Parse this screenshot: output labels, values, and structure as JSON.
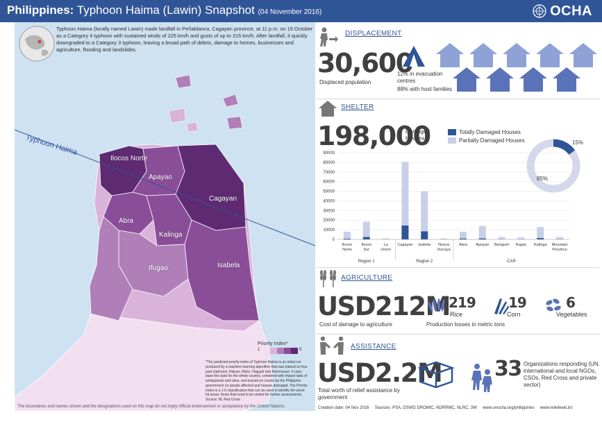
{
  "header": {
    "title_bold": "Philippines:",
    "title_rest": "Typhoon Haima (Lawin) Snapshot",
    "date": "(04 November 2016)",
    "logo_text": "OCHA"
  },
  "intro": "Typhoon Haima (locally named Lawin) made landfall in Peñablanca, Cagayan province, at 11 p.m. on 19 October as a Category 4 typhoon with sustained winds of 225 km/h and gusts of up to 315 km/h. After landfall, it quickly downgraded to a Category 3 typhoon, leaving a broad path of debris, damage to homes, businesses and agriculture, flooding and landslides.",
  "map": {
    "track_label": "Typhoon Haima",
    "provinces": [
      "Ilocos Norte",
      "Apayao",
      "Cagayan",
      "Abra",
      "Kalinga",
      "Ifugao",
      "Isabela"
    ],
    "legend_title": "Priority Index*",
    "legend_min": "1",
    "legend_max": "5",
    "legend_colors": [
      "#f2dff0",
      "#d9b3d9",
      "#b07fb8",
      "#8a4e98",
      "#5e2a72"
    ],
    "footnote": "*The predicted priority index of Typhoon Haima is an initial run produced by a machine learning algorithm that was trained on four past typhoons: Haiyan, Melor, Hagupit and Rammasun. It uses base line data for the whole country, combined with impact data of windspeeds and rains, and trained on counts by the Philippine government on people affected and houses damaged. The Priority Index is a 1-5 classification that can be used to identify the worst hit areas: those that need to be visited for further assessments.",
    "footnote_source": "Source: NL Red Cross",
    "disclaimer": "The boundaries and names shown and the designations used on this map do not imply official endorsement or acceptance by the United Nations."
  },
  "displacement": {
    "heading": "DISPLACEMENT",
    "value": "30,600",
    "label": "Displaced population",
    "evac_text": "12% in evacuation centres",
    "host_text": "88% with host families",
    "icons": {
      "person": "person-arrow-icon",
      "tent": "tent-icon",
      "house": "house-icon"
    }
  },
  "shelter": {
    "heading": "SHELTER",
    "value": "198,000",
    "label": "Damaged Houses",
    "legend_total": "Totally Damaged Houses",
    "legend_partial": "Partially Damaged Houses",
    "colors": {
      "total": "#2f5597",
      "partial": "#c9cfe8"
    },
    "donut_pct_total": "15%",
    "donut_pct_partial": "85%",
    "icon": "house-icon"
  },
  "chart_data": {
    "type": "bar",
    "stacked": true,
    "categories": [
      "Ilocos Norte",
      "Ilocos Sur",
      "La Union",
      "Cagayan",
      "Isabela",
      "Nueva Vizcaya",
      "Abra",
      "Apayao",
      "Benguet",
      "Ifugao",
      "Kalinga",
      "Mountain Province"
    ],
    "groups": [
      {
        "label": "Region 1",
        "categories": [
          "Ilocos Norte",
          "Ilocos Sur",
          "La Union"
        ]
      },
      {
        "label": "Region 2",
        "categories": [
          "Cagayan",
          "Isabela",
          "Nueva Vizcaya"
        ]
      },
      {
        "label": "CAR",
        "categories": [
          "Abra",
          "Apayao",
          "Benguet",
          "Ifugao",
          "Kalinga",
          "Mountain Province"
        ]
      }
    ],
    "series": [
      {
        "name": "Totally Damaged Houses",
        "values": [
          800,
          2500,
          100,
          14500,
          8500,
          100,
          1000,
          1200,
          150,
          150,
          1500,
          200
        ]
      },
      {
        "name": "Partially Damaged Houses",
        "values": [
          7200,
          16000,
          900,
          66000,
          41500,
          900,
          7000,
          12800,
          2350,
          1850,
          11500,
          2300
        ]
      }
    ],
    "yticks": [
      0,
      10000,
      20000,
      30000,
      40000,
      50000,
      60000,
      70000,
      80000,
      90000
    ],
    "ylim": [
      0,
      90000
    ]
  },
  "agriculture": {
    "heading": "AGRICULTURE",
    "value": "USD212M",
    "label": "Cost of damage to agriculture",
    "production_label": "Production losses in metric tons",
    "items": [
      {
        "value": "219",
        "name": "Rice",
        "icon": "rice-icon"
      },
      {
        "value": "19",
        "name": "Corn",
        "icon": "corn-icon"
      },
      {
        "value": "6",
        "name": "Vegetables",
        "icon": "vegetables-icon"
      }
    ],
    "icon": "wheat-icon"
  },
  "assistance": {
    "heading": "ASSISTANCE",
    "value": "USD2.2M",
    "label": "Total worth of relief assistance by government",
    "org_value": "33",
    "org_label": "Organizations responding (UN. international and local NGOs, CSOs, Red Cross and private sector)",
    "icons": {
      "handshake": "handshake-icon",
      "box": "relief-box-icon",
      "people": "people-icon"
    }
  },
  "footer": {
    "creation": "Creation date: 04 Nov 2016",
    "sources": "Sources: PSA, DSWD DROMIC, NDRRMC, NLRC, 3W",
    "site1": "www.unocha.org/philippines",
    "site2": "www.reliefweb.int"
  }
}
